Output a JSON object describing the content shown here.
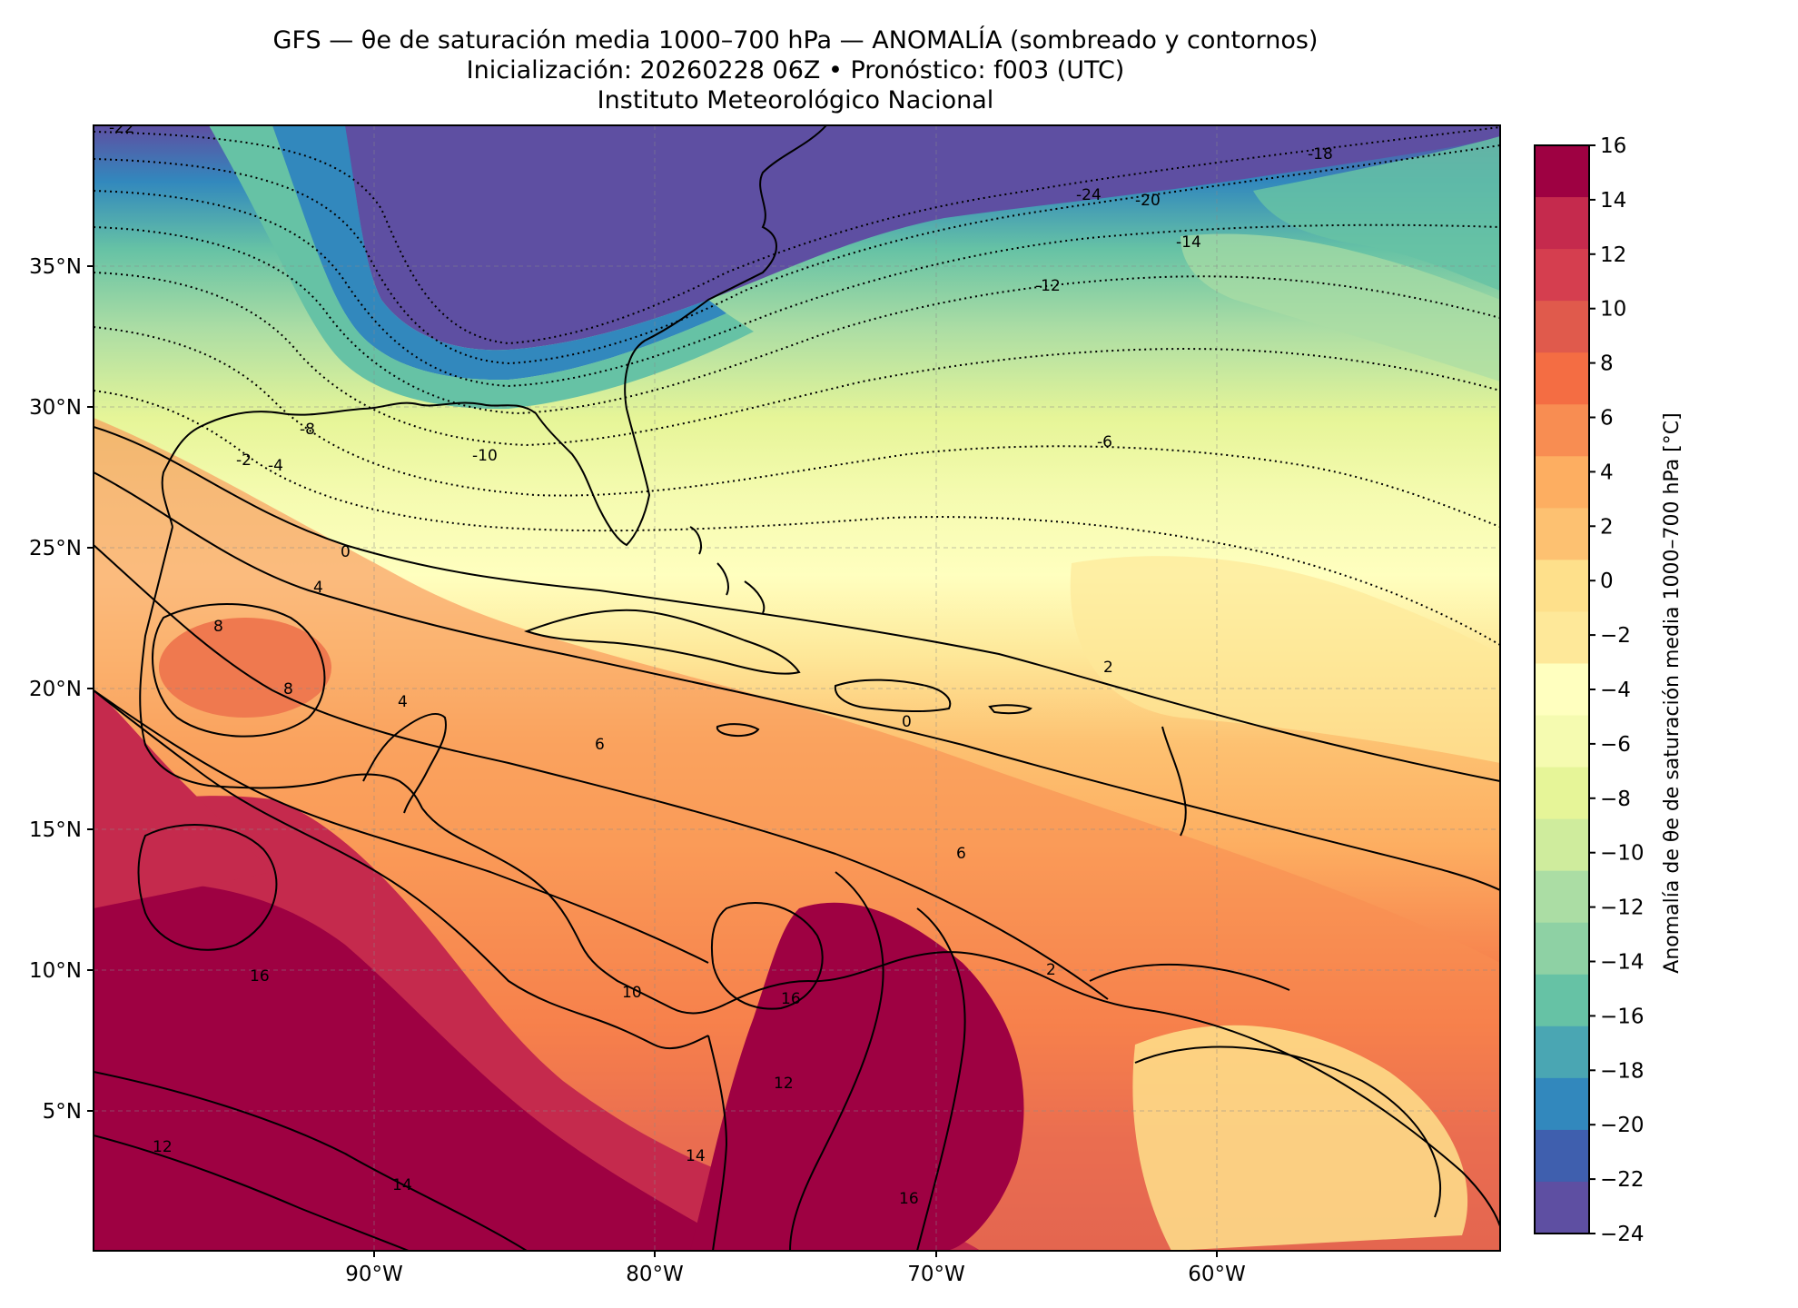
{
  "title": {
    "line1": "GFS — θe de saturación media 1000–700 hPa — ANOMALÍA (sombreado y contornos)",
    "line2": "Inicialización: 20260228 06Z   •   Pronóstico: f003 (UTC)",
    "line3": "Instituto Meteorológico Nacional"
  },
  "map": {
    "lon_ticks": [
      "90°W",
      "80°W",
      "70°W",
      "60°W"
    ],
    "lat_ticks": [
      "35°N",
      "30°N",
      "25°N",
      "20°N",
      "15°N",
      "10°N",
      "5°N"
    ],
    "contour_labels": [
      "-22",
      "-18",
      "-24",
      "-20",
      "-14",
      "-12",
      "-10",
      "-8",
      "-6",
      "-2",
      "-4",
      "0",
      "4",
      "8",
      "6",
      "2",
      "10",
      "12",
      "14",
      "16",
      "16",
      "14",
      "12",
      "16",
      "8",
      "4",
      "2",
      "0",
      "6"
    ],
    "colormap": [
      "#5e4fa2",
      "#3f5fae",
      "#3288bd",
      "#4aa6b3",
      "#66c2a5",
      "#8ed1a4",
      "#abdda4",
      "#cfec9d",
      "#e6f598",
      "#f5fbb0",
      "#ffffbf",
      "#fee899",
      "#fee08b",
      "#fdc171",
      "#fdae61",
      "#f88d52",
      "#f46d43",
      "#e05a4c",
      "#d53e4f",
      "#c52a4d",
      "#9e0142"
    ]
  },
  "colorbar": {
    "label": "Anomalía de θe de saturación media 1000–700 hPa [°C]",
    "ticks": [
      "16",
      "14",
      "12",
      "10",
      "8",
      "6",
      "4",
      "2",
      "0",
      "−2",
      "−4",
      "−6",
      "−8",
      "−10",
      "−12",
      "−14",
      "−16",
      "−18",
      "−20",
      "−22",
      "−24"
    ],
    "colors": [
      "#9e0142",
      "#c52a4d",
      "#d53e4f",
      "#e05a4c",
      "#f46d43",
      "#f88d52",
      "#fdae61",
      "#fdc171",
      "#fee08b",
      "#fee899",
      "#ffffbf",
      "#f5fbb0",
      "#e6f598",
      "#cfec9d",
      "#abdda4",
      "#8ed1a4",
      "#66c2a5",
      "#4aa6b3",
      "#3288bd",
      "#3f5fae",
      "#5e4fa2"
    ]
  }
}
